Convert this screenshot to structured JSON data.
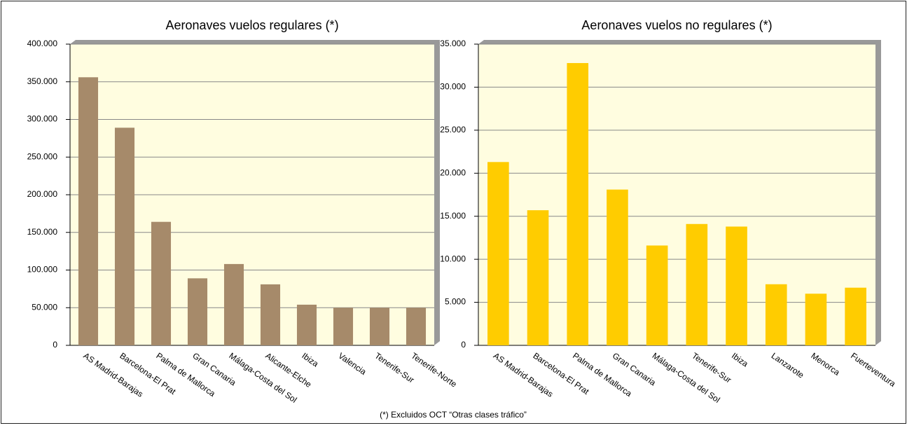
{
  "chart_data": [
    {
      "type": "bar",
      "title": "Aeronaves vuelos regulares (*)",
      "categories": [
        "AS Madrid-Barajas",
        "Barcelona-El Prat",
        "Palma de Mallorca",
        "Gran Canaria",
        "Málaga-Costa del Sol",
        "Alicante-Elche",
        "Ibiza",
        "Valencia",
        "Tenerife-Sur",
        "Tenerife-Norte"
      ],
      "values": [
        356000,
        289000,
        164000,
        89000,
        108000,
        81000,
        54000,
        50000,
        50000,
        50000
      ],
      "color": "#a68a6a",
      "ylim": [
        0,
        400000
      ],
      "yticks": [
        0,
        {
          "value": 50000,
          "label": "50.000"
        },
        {
          "value": 100000,
          "label": "100.000"
        },
        {
          "value": 150000,
          "label": "150.000"
        },
        {
          "value": 200000,
          "label": "200.000"
        },
        {
          "value": 250000,
          "label": "250.000"
        },
        {
          "value": 300000,
          "label": "300.000"
        },
        {
          "value": 350000,
          "label": "350.000"
        },
        {
          "value": 400000,
          "label": "400.000"
        }
      ],
      "grid": true
    },
    {
      "type": "bar",
      "title": "Aeronaves vuelos no regulares (*)",
      "categories": [
        "AS Madrid-Barajas",
        "Barcelona-El Prat",
        "Palma  de Mallorca",
        "Gran Canaria",
        "Málaga-Costa del Sol",
        "Tenerife-Sur",
        "Ibiza",
        "Lanzarote",
        "Menorca",
        "Fuerteventura"
      ],
      "values": [
        21300,
        15700,
        32800,
        18100,
        11600,
        14100,
        13800,
        7100,
        6000,
        6700
      ],
      "color": "#ffcc00",
      "ylim": [
        0,
        35000
      ],
      "yticks": [
        0,
        {
          "value": 5000,
          "label": "5.000"
        },
        {
          "value": 10000,
          "label": "10.000"
        },
        {
          "value": 15000,
          "label": "15.000"
        },
        {
          "value": 20000,
          "label": "20.000"
        },
        {
          "value": 25000,
          "label": "25.000"
        },
        {
          "value": 30000,
          "label": "30.000"
        },
        {
          "value": 35000,
          "label": "35.000"
        }
      ],
      "grid": true
    }
  ],
  "footnote": "(*) Excluidos OCT “Otras clases tráfico”"
}
